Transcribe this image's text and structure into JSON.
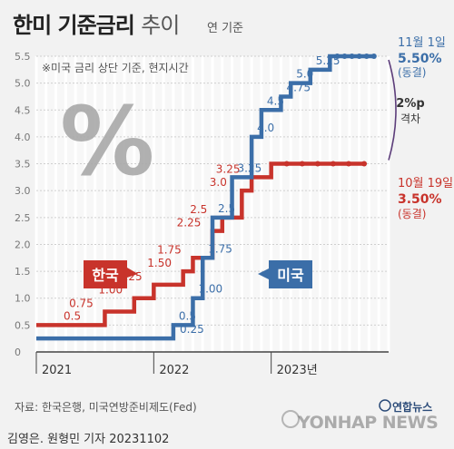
{
  "header": {
    "title_bold": "한미 기준금리",
    "title_light": "추이",
    "unit": "연 기준"
  },
  "note": "※미국 금리 상단 기준, 현지시간",
  "source": "자료: 한국은행, 미국연방준비제도(Fed)",
  "credit": "김영은. 원형민 기자  20231102",
  "logo": {
    "kr": "연합뉴스",
    "en": "YONHAP NEWS"
  },
  "colors": {
    "korea": "#c8332b",
    "usa": "#3b6ea8",
    "gap": "#5c3d7a"
  },
  "chart_data": {
    "type": "line",
    "x_range": [
      "2021-01",
      "2023-12"
    ],
    "x_ticks": [
      "2021",
      "2022",
      "2023년"
    ],
    "ylim": [
      0,
      5.5
    ],
    "y_ticks": [
      "0",
      "0.5",
      "1.0",
      "1.5",
      "2.0",
      "2.5",
      "3.0",
      "3.5",
      "4.0",
      "4.5",
      "5.0",
      "5.5"
    ],
    "series": [
      {
        "name": "한국",
        "color": "#c8332b",
        "points": [
          {
            "x": "2021-01",
            "y": 0.5
          },
          {
            "x": "2021-08",
            "y": 0.75,
            "label": "0.75"
          },
          {
            "x": "2021-11",
            "y": 1.0,
            "label": "1.00"
          },
          {
            "x": "2022-01",
            "y": 1.25,
            "label": "1.25"
          },
          {
            "x": "2022-04",
            "y": 1.5,
            "label": "1.50"
          },
          {
            "x": "2022-05",
            "y": 1.75,
            "label": "1.75"
          },
          {
            "x": "2022-07",
            "y": 2.25,
            "label": "2.25"
          },
          {
            "x": "2022-08",
            "y": 2.5,
            "label": "2.5"
          },
          {
            "x": "2022-10",
            "y": 3.0,
            "label": "3.0"
          },
          {
            "x": "2022-11",
            "y": 3.25,
            "label": "3.25"
          },
          {
            "x": "2023-01",
            "y": 3.5
          }
        ],
        "first_label": "0.5",
        "end": "2023-10",
        "end_label": {
          "date": "10월 19일",
          "value": "3.50%",
          "status": "(동결)"
        }
      },
      {
        "name": "미국",
        "color": "#3b6ea8",
        "points": [
          {
            "x": "2021-01",
            "y": 0.25
          },
          {
            "x": "2022-03",
            "y": 0.5,
            "label": "0.5"
          },
          {
            "x": "2022-05",
            "y": 1.0,
            "label": "1.00"
          },
          {
            "x": "2022-06",
            "y": 1.75,
            "label": "1.75"
          },
          {
            "x": "2022-07",
            "y": 2.5,
            "label": "2.5"
          },
          {
            "x": "2022-09",
            "y": 3.25,
            "label": "3.25"
          },
          {
            "x": "2022-11",
            "y": 4.0,
            "label": "4.0"
          },
          {
            "x": "2022-12",
            "y": 4.5,
            "label": "4.5"
          },
          {
            "x": "2023-02",
            "y": 4.75,
            "label": "4.75"
          },
          {
            "x": "2023-03",
            "y": 5.0,
            "label": "5.0"
          },
          {
            "x": "2023-05",
            "y": 5.25,
            "label": "5.25"
          },
          {
            "x": "2023-07",
            "y": 5.5
          }
        ],
        "first_label": "0.25",
        "end": "2023-11",
        "end_label": {
          "date": "11월 1일",
          "value": "5.50%",
          "status": "(동결)"
        }
      }
    ],
    "gap_annotation": {
      "value": "2%p",
      "text": "격차"
    },
    "legend": "inline"
  }
}
